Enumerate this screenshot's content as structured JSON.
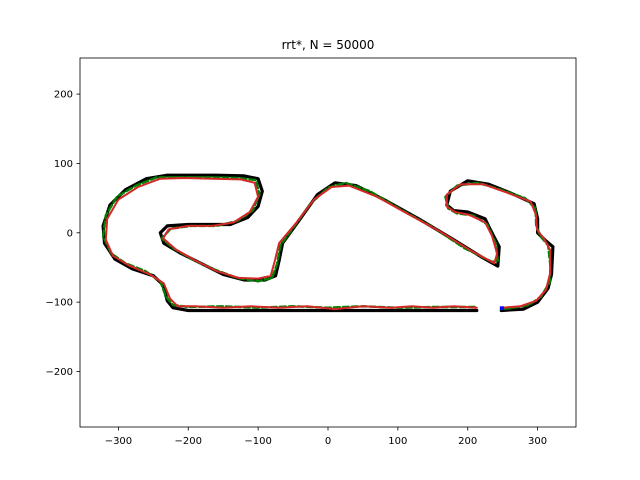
{
  "chart_data": {
    "type": "line",
    "title": "rrt*, N = 50000",
    "xlabel": "",
    "ylabel": "",
    "xlim": [
      -355,
      355
    ],
    "ylim": [
      -280,
      252
    ],
    "xticks": [
      -300,
      -200,
      -100,
      0,
      100,
      200,
      300
    ],
    "xtick_labels": [
      "−300",
      "−200",
      "−100",
      "0",
      "100",
      "200",
      "300"
    ],
    "yticks": [
      -200,
      -100,
      0,
      100,
      200
    ],
    "ytick_labels": [
      "−200",
      "−100",
      "0",
      "100",
      "200"
    ],
    "grid": false,
    "colors": {
      "track": "#000000",
      "tree": "#008000",
      "path": "#d62728",
      "start": "#0000ff"
    },
    "series": [
      {
        "role": "track-boundary",
        "color": "#000000",
        "points": [
          [
            213,
            -112
          ],
          [
            100,
            -112
          ],
          [
            0,
            -112
          ],
          [
            -100,
            -112
          ],
          [
            -200,
            -112
          ],
          [
            -222,
            -108
          ],
          [
            -230,
            -98
          ],
          [
            -236,
            -75
          ],
          [
            -250,
            -62
          ],
          [
            -280,
            -52
          ],
          [
            -305,
            -38
          ],
          [
            -320,
            -15
          ],
          [
            -322,
            10
          ],
          [
            -312,
            40
          ],
          [
            -290,
            62
          ],
          [
            -260,
            78
          ],
          [
            -230,
            83
          ],
          [
            -200,
            83
          ],
          [
            -160,
            83
          ],
          [
            -120,
            82
          ],
          [
            -100,
            78
          ],
          [
            -94,
            60
          ],
          [
            -100,
            38
          ],
          [
            -115,
            22
          ],
          [
            -140,
            12
          ],
          [
            -170,
            12
          ],
          [
            -200,
            12
          ],
          [
            -230,
            10
          ],
          [
            -240,
            0
          ],
          [
            -235,
            -15
          ],
          [
            -210,
            -30
          ],
          [
            -180,
            -45
          ],
          [
            -150,
            -60
          ],
          [
            -120,
            -68
          ],
          [
            -90,
            -68
          ],
          [
            -75,
            -62
          ],
          [
            -70,
            -40
          ],
          [
            -65,
            -15
          ],
          [
            -40,
            20
          ],
          [
            -15,
            55
          ],
          [
            10,
            72
          ],
          [
            40,
            68
          ],
          [
            80,
            48
          ],
          [
            130,
            20
          ],
          [
            180,
            -10
          ],
          [
            220,
            -35
          ],
          [
            243,
            -48
          ],
          [
            245,
            -20
          ],
          [
            232,
            5
          ],
          [
            225,
            20
          ],
          [
            200,
            30
          ],
          [
            180,
            32
          ],
          [
            170,
            40
          ],
          [
            175,
            60
          ],
          [
            200,
            75
          ],
          [
            230,
            70
          ],
          [
            260,
            58
          ],
          [
            295,
            42
          ],
          [
            300,
            20
          ],
          [
            300,
            0
          ],
          [
            310,
            -10
          ],
          [
            322,
            -20
          ],
          [
            320,
            -60
          ],
          [
            315,
            -80
          ],
          [
            300,
            -100
          ],
          [
            280,
            -110
          ],
          [
            248,
            -112
          ]
        ]
      },
      {
        "role": "tree-edges",
        "color": "#008000",
        "points": [
          [
            210,
            -107
          ],
          [
            150,
            -107
          ],
          [
            100,
            -108
          ],
          [
            50,
            -106
          ],
          [
            0,
            -108
          ],
          [
            -50,
            -106
          ],
          [
            -100,
            -108
          ],
          [
            -150,
            -106
          ],
          [
            -200,
            -107
          ],
          [
            -222,
            -104
          ],
          [
            -232,
            -92
          ],
          [
            -240,
            -70
          ],
          [
            -262,
            -55
          ],
          [
            -290,
            -44
          ],
          [
            -310,
            -30
          ],
          [
            -322,
            -5
          ],
          [
            -318,
            25
          ],
          [
            -302,
            52
          ],
          [
            -275,
            68
          ],
          [
            -245,
            80
          ],
          [
            -210,
            80
          ],
          [
            -170,
            80
          ],
          [
            -130,
            79
          ],
          [
            -103,
            76
          ],
          [
            -98,
            55
          ],
          [
            -108,
            32
          ],
          [
            -130,
            17
          ],
          [
            -160,
            10
          ],
          [
            -195,
            10
          ],
          [
            -225,
            6
          ],
          [
            -238,
            -8
          ],
          [
            -222,
            -22
          ],
          [
            -195,
            -38
          ],
          [
            -165,
            -52
          ],
          [
            -130,
            -65
          ],
          [
            -100,
            -70
          ],
          [
            -80,
            -65
          ],
          [
            -73,
            -45
          ],
          [
            -68,
            -18
          ],
          [
            -48,
            10
          ],
          [
            -25,
            42
          ],
          [
            0,
            65
          ],
          [
            25,
            72
          ],
          [
            60,
            60
          ],
          [
            105,
            33
          ],
          [
            150,
            8
          ],
          [
            195,
            -22
          ],
          [
            235,
            -42
          ],
          [
            243,
            -40
          ],
          [
            240,
            -15
          ],
          [
            228,
            12
          ],
          [
            208,
            25
          ],
          [
            185,
            28
          ],
          [
            172,
            35
          ],
          [
            168,
            52
          ],
          [
            185,
            68
          ],
          [
            215,
            72
          ],
          [
            248,
            62
          ],
          [
            282,
            50
          ],
          [
            297,
            35
          ],
          [
            298,
            10
          ],
          [
            304,
            -5
          ],
          [
            315,
            -18
          ],
          [
            318,
            -45
          ],
          [
            318,
            -70
          ],
          [
            305,
            -92
          ],
          [
            288,
            -104
          ],
          [
            260,
            -109
          ],
          [
            248,
            -110
          ]
        ]
      },
      {
        "role": "path",
        "color": "#d62728",
        "points": [
          [
            213,
            -108
          ],
          [
            180,
            -106
          ],
          [
            150,
            -108
          ],
          [
            120,
            -106
          ],
          [
            90,
            -108
          ],
          [
            50,
            -106
          ],
          [
            10,
            -110
          ],
          [
            -30,
            -106
          ],
          [
            -70,
            -108
          ],
          [
            -110,
            -106
          ],
          [
            -150,
            -108
          ],
          [
            -190,
            -106
          ],
          [
            -215,
            -106
          ],
          [
            -226,
            -95
          ],
          [
            -235,
            -73
          ],
          [
            -255,
            -60
          ],
          [
            -285,
            -47
          ],
          [
            -308,
            -33
          ],
          [
            -318,
            -10
          ],
          [
            -316,
            20
          ],
          [
            -300,
            48
          ],
          [
            -272,
            66
          ],
          [
            -240,
            78
          ],
          [
            -205,
            79
          ],
          [
            -165,
            78
          ],
          [
            -125,
            77
          ],
          [
            -105,
            72
          ],
          [
            -100,
            52
          ],
          [
            -112,
            30
          ],
          [
            -135,
            15
          ],
          [
            -165,
            10
          ],
          [
            -200,
            10
          ],
          [
            -228,
            5
          ],
          [
            -236,
            -8
          ],
          [
            -218,
            -24
          ],
          [
            -190,
            -40
          ],
          [
            -160,
            -55
          ],
          [
            -128,
            -65
          ],
          [
            -100,
            -66
          ],
          [
            -82,
            -62
          ],
          [
            -76,
            -40
          ],
          [
            -70,
            -15
          ],
          [
            -45,
            15
          ],
          [
            -20,
            48
          ],
          [
            5,
            66
          ],
          [
            30,
            68
          ],
          [
            70,
            52
          ],
          [
            115,
            27
          ],
          [
            160,
            2
          ],
          [
            205,
            -26
          ],
          [
            238,
            -44
          ],
          [
            242,
            -30
          ],
          [
            235,
            -5
          ],
          [
            225,
            15
          ],
          [
            202,
            26
          ],
          [
            182,
            30
          ],
          [
            170,
            38
          ],
          [
            170,
            55
          ],
          [
            190,
            70
          ],
          [
            222,
            70
          ],
          [
            256,
            58
          ],
          [
            290,
            45
          ],
          [
            298,
            25
          ],
          [
            299,
            5
          ],
          [
            310,
            -10
          ],
          [
            318,
            -25
          ],
          [
            318,
            -58
          ],
          [
            312,
            -82
          ],
          [
            298,
            -98
          ],
          [
            275,
            -106
          ],
          [
            250,
            -108
          ]
        ]
      }
    ],
    "start_marker": {
      "x": [
        246,
        252
      ],
      "y": [
        -111,
        -106
      ],
      "color": "#0000ff"
    }
  }
}
